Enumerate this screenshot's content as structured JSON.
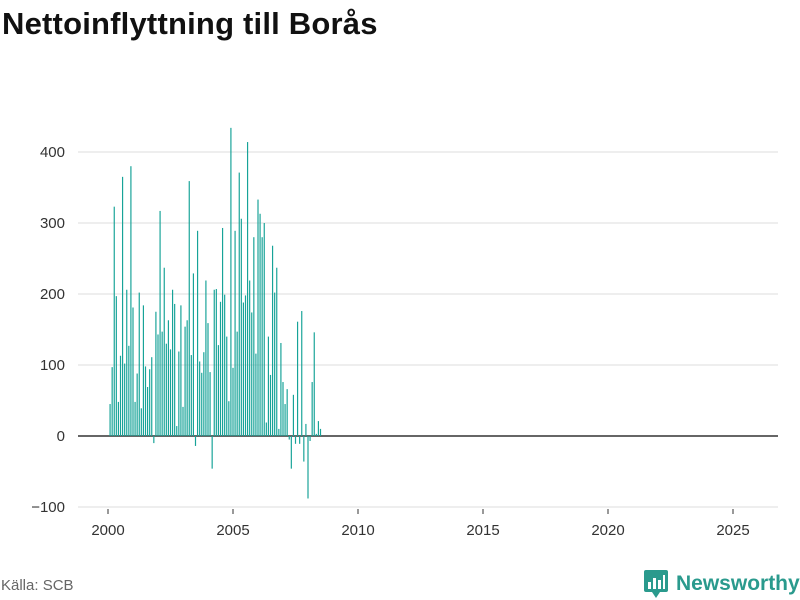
{
  "title": "Nettoinflyttning till Borås",
  "source": "Källa: SCB",
  "brand": "Newsworthy",
  "colors": {
    "bar": "#17a398",
    "grid": "#dddddd",
    "axis": "#333333",
    "brand": "#2a9a8d"
  },
  "chart_data": {
    "type": "bar",
    "title": "Nettoinflyttning till Borås",
    "xlabel": "",
    "ylabel": "",
    "ylim": [
      -100,
      440
    ],
    "yticks": [
      -100,
      0,
      100,
      200,
      300,
      400
    ],
    "xticks": [
      2000,
      2005,
      2010,
      2015,
      2020,
      2025
    ],
    "frequency": "monthly",
    "grid": true,
    "series": [
      {
        "start": "2000-02",
        "values": [
          45,
          97,
          323,
          197,
          48,
          113,
          365,
          102,
          206,
          127,
          380,
          181,
          48,
          88,
          202,
          39,
          184,
          98,
          69,
          94,
          111,
          -10,
          175,
          143,
          317,
          147,
          237,
          130,
          163,
          122,
          206,
          186,
          14,
          119,
          184,
          41,
          154,
          163,
          359,
          114,
          229,
          -14,
          289,
          105,
          89,
          118,
          219,
          159,
          90,
          -46,
          206,
          207,
          128,
          189,
          293,
          199,
          140,
          49,
          434,
          96,
          289,
          147,
          371,
          306,
          188,
          198,
          414,
          219,
          174,
          280,
          116,
          333,
          313,
          280,
          300,
          19,
          140,
          86,
          268,
          202,
          237,
          10,
          131,
          76,
          45,
          66,
          -5,
          -46,
          58,
          -11,
          161,
          -11,
          176,
          -36,
          17,
          -88,
          -7,
          76,
          146,
          3,
          21,
          10
        ]
      }
    ]
  }
}
